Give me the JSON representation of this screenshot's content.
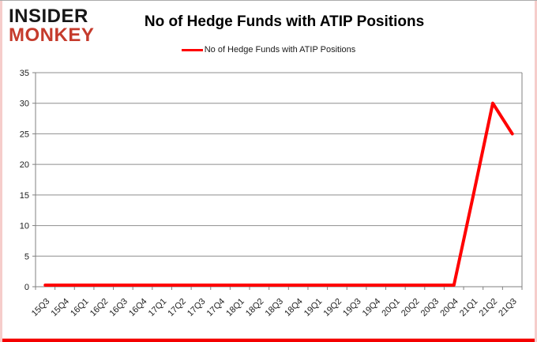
{
  "brand": {
    "line1": "INSIDER",
    "line2": "MONKEY"
  },
  "header": {
    "title": "No of Hedge Funds with ATIP Positions"
  },
  "legend": {
    "label": "No of Hedge Funds with ATIP Positions"
  },
  "colors": {
    "series_line": "#ff0000",
    "gridline": "#8e8e8e",
    "axis": "#808080",
    "tick_label": "#212121",
    "brand_black": "#171717",
    "brand_red": "#c53b2c",
    "frame_bottom": "#f40000",
    "frame_sides": "#f6cdcb"
  },
  "chart_data": {
    "type": "line",
    "title": "No of Hedge Funds with ATIP Positions",
    "xlabel": "",
    "ylabel": "",
    "categories": [
      "15Q3",
      "15Q4",
      "16Q1",
      "16Q2",
      "16Q3",
      "16Q4",
      "17Q1",
      "17Q2",
      "17Q3",
      "17Q4",
      "18Q1",
      "18Q2",
      "18Q3",
      "18Q4",
      "19Q1",
      "19Q2",
      "19Q3",
      "19Q4",
      "20Q1",
      "20Q2",
      "20Q3",
      "20Q4",
      "21Q1",
      "21Q2",
      "21Q3"
    ],
    "series": [
      {
        "name": "No of Hedge Funds with ATIP Positions",
        "color": "#ff0000",
        "values": [
          0,
          0,
          0,
          0,
          0,
          0,
          0,
          0,
          0,
          0,
          0,
          0,
          0,
          0,
          0,
          0,
          0,
          0,
          0,
          0,
          0,
          0,
          15,
          30,
          25
        ]
      }
    ],
    "ylim": [
      0,
      35
    ],
    "yticks": [
      0,
      5,
      10,
      15,
      20,
      25,
      30,
      35
    ],
    "grid": true,
    "legend_position": "top-center"
  }
}
